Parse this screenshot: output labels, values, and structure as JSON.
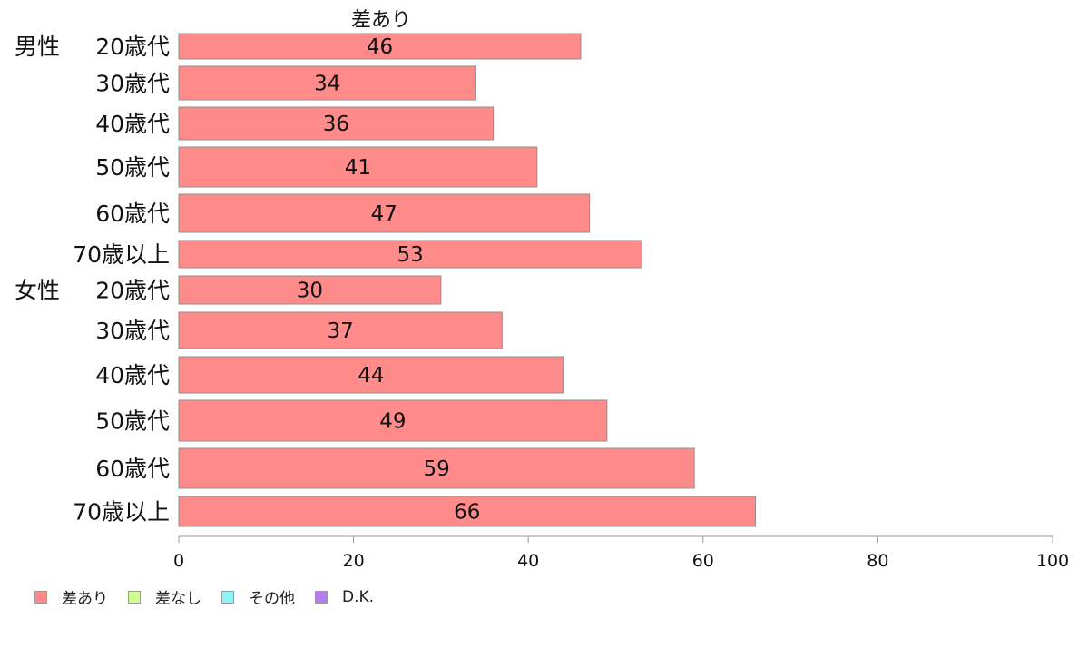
{
  "chart_data": {
    "type": "bar",
    "orientation": "horizontal",
    "title": "差あり",
    "groups": [
      {
        "label": "男性",
        "categories": [
          "20歳代",
          "30歳代",
          "40歳代",
          "50歳代",
          "60歳代",
          "70歳以上"
        ],
        "values": [
          46,
          34,
          36,
          41,
          47,
          53
        ]
      },
      {
        "label": "女性",
        "categories": [
          "20歳代",
          "30歳代",
          "40歳代",
          "50歳代",
          "60歳代",
          "70歳以上"
        ],
        "values": [
          30,
          37,
          44,
          49,
          59,
          66
        ]
      }
    ],
    "xlim": [
      0,
      100
    ],
    "xticks": [
      "0",
      "20",
      "40",
      "60",
      "80",
      "100"
    ],
    "grid": false,
    "bar_color": "#ff8b8b",
    "legend_position": "bottom-left",
    "legend": [
      {
        "label": "差あり",
        "color": "#ff8b8b"
      },
      {
        "label": "差なし",
        "color": "#cfff8a"
      },
      {
        "label": "その他",
        "color": "#8af5f5"
      },
      {
        "label": "D.K.",
        "color": "#b57cf0"
      }
    ]
  }
}
